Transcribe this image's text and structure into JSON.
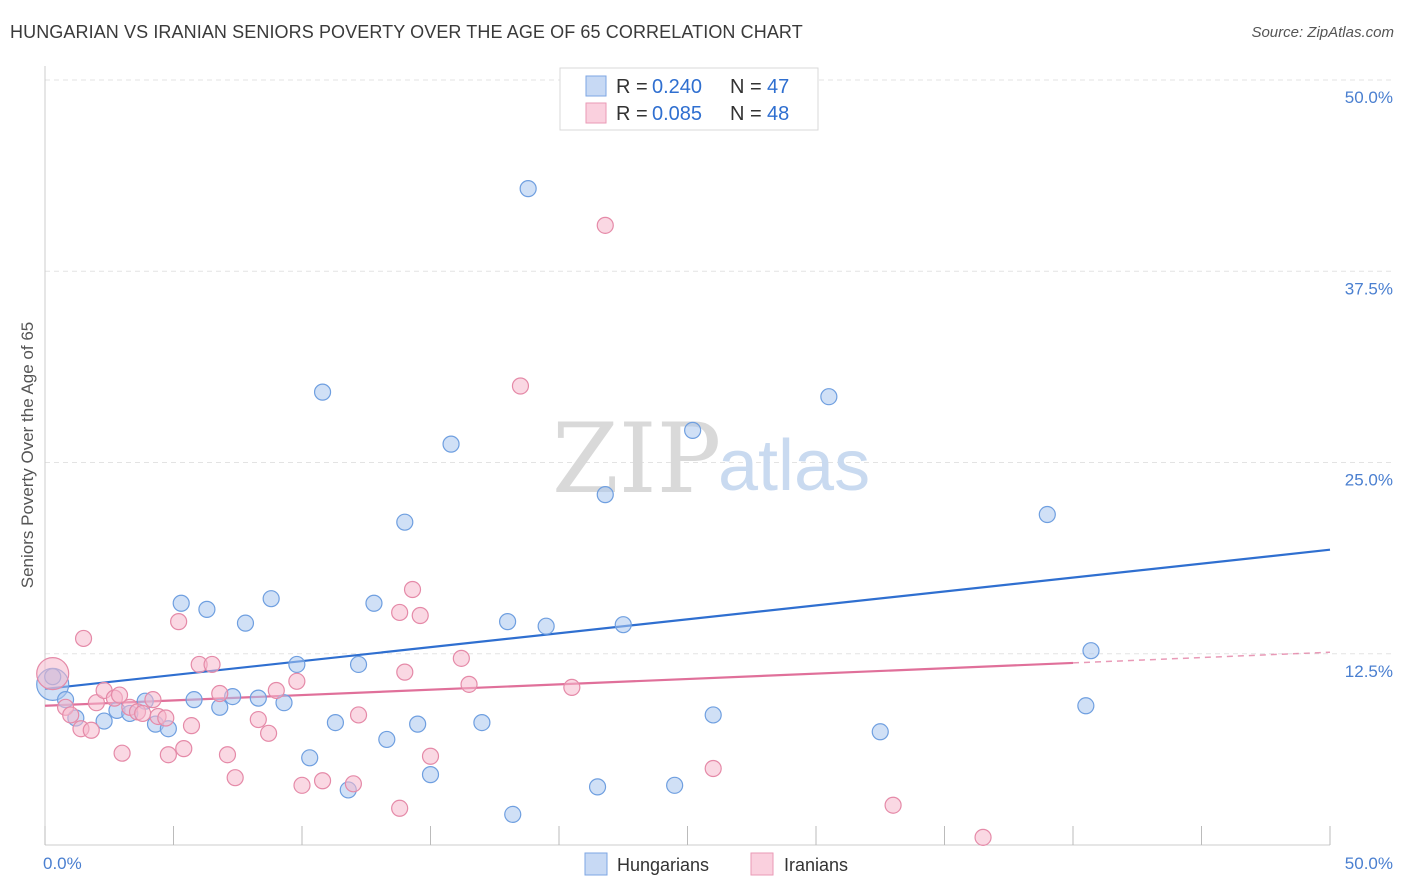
{
  "title": "HUNGARIAN VS IRANIAN SENIORS POVERTY OVER THE AGE OF 65 CORRELATION CHART",
  "source": "Source: ZipAtlas.com",
  "watermark": {
    "zip": "ZIP",
    "atlas": "atlas"
  },
  "chart_data": {
    "type": "scatter",
    "ylabel": "Seniors Poverty Over the Age of 65",
    "xlim": [
      0,
      50
    ],
    "ylim": [
      0,
      50
    ],
    "x_tick_labels": [
      "0.0%",
      "50.0%"
    ],
    "y_tick_labels": [
      "12.5%",
      "25.0%",
      "37.5%",
      "50.0%"
    ],
    "y_ticks": [
      12.5,
      25,
      37.5,
      50
    ],
    "grid": "horizontal dashed",
    "legend_top": [
      {
        "r_label": "R = ",
        "r_value": "0.240",
        "n_label": "N = ",
        "n_value": "47",
        "color": "#a9c6ef"
      },
      {
        "r_label": "R = ",
        "r_value": "0.085",
        "n_label": "N = ",
        "n_value": "48",
        "color": "#f5b8cc"
      }
    ],
    "series": [
      {
        "name": "Hungarians",
        "color": "#a9c6ef",
        "stroke": "#6f9fe0",
        "line_color": "#2f6fd0",
        "trend": {
          "x0": 0,
          "y0": 10.2,
          "x1": 50,
          "y1": 19.3
        },
        "points": [
          [
            0.3,
            10.5
          ],
          [
            0.8,
            9.5
          ],
          [
            1.2,
            8.3
          ],
          [
            2.3,
            8.1
          ],
          [
            2.8,
            8.8
          ],
          [
            3.3,
            8.6
          ],
          [
            3.9,
            9.4
          ],
          [
            4.3,
            7.9
          ],
          [
            4.8,
            7.6
          ],
          [
            5.3,
            15.8
          ],
          [
            5.8,
            9.5
          ],
          [
            6.3,
            15.4
          ],
          [
            6.8,
            9.0
          ],
          [
            7.3,
            9.7
          ],
          [
            7.8,
            14.5
          ],
          [
            8.3,
            9.6
          ],
          [
            8.8,
            16.1
          ],
          [
            9.3,
            9.3
          ],
          [
            9.8,
            11.8
          ],
          [
            10.3,
            5.7
          ],
          [
            10.8,
            29.6
          ],
          [
            11.3,
            8.0
          ],
          [
            11.8,
            3.6
          ],
          [
            12.2,
            11.8
          ],
          [
            12.8,
            15.8
          ],
          [
            13.3,
            6.9
          ],
          [
            14.0,
            21.1
          ],
          [
            14.5,
            7.9
          ],
          [
            15.0,
            4.6
          ],
          [
            15.8,
            26.2
          ],
          [
            17.0,
            8.0
          ],
          [
            18.0,
            14.6
          ],
          [
            18.2,
            2.0
          ],
          [
            18.8,
            42.9
          ],
          [
            19.5,
            14.3
          ],
          [
            21.5,
            3.8
          ],
          [
            21.8,
            22.9
          ],
          [
            22.5,
            14.4
          ],
          [
            24.5,
            3.9
          ],
          [
            25.2,
            27.1
          ],
          [
            26.0,
            8.5
          ],
          [
            30.5,
            29.3
          ],
          [
            32.5,
            7.4
          ],
          [
            39.0,
            21.6
          ],
          [
            40.5,
            9.1
          ],
          [
            40.7,
            12.7
          ],
          [
            0.3,
            11.0
          ]
        ]
      },
      {
        "name": "Iranians",
        "color": "#f5b8cc",
        "stroke": "#e58aa8",
        "line_color": "#e0709a",
        "trend": {
          "x0": 0,
          "y0": 9.1,
          "x1": 40,
          "y1": 11.9
        },
        "trend_dash": {
          "x0": 40,
          "y0": 11.9,
          "x1": 50,
          "y1": 12.6
        },
        "points": [
          [
            0.3,
            11.2
          ],
          [
            0.8,
            9.0
          ],
          [
            1.0,
            8.5
          ],
          [
            1.4,
            7.6
          ],
          [
            1.5,
            13.5
          ],
          [
            1.8,
            7.5
          ],
          [
            2.0,
            9.3
          ],
          [
            2.3,
            10.1
          ],
          [
            2.7,
            9.6
          ],
          [
            2.9,
            9.8
          ],
          [
            3.0,
            6.0
          ],
          [
            3.3,
            9.0
          ],
          [
            3.6,
            8.7
          ],
          [
            3.8,
            8.6
          ],
          [
            4.2,
            9.5
          ],
          [
            4.4,
            8.4
          ],
          [
            4.7,
            8.3
          ],
          [
            4.8,
            5.9
          ],
          [
            5.2,
            14.6
          ],
          [
            5.4,
            6.3
          ],
          [
            5.7,
            7.8
          ],
          [
            6.0,
            11.8
          ],
          [
            6.5,
            11.8
          ],
          [
            6.8,
            9.9
          ],
          [
            7.1,
            5.9
          ],
          [
            7.4,
            4.4
          ],
          [
            8.3,
            8.2
          ],
          [
            8.7,
            7.3
          ],
          [
            9.0,
            10.1
          ],
          [
            9.8,
            10.7
          ],
          [
            10.0,
            3.9
          ],
          [
            10.8,
            4.2
          ],
          [
            12.0,
            4.0
          ],
          [
            12.2,
            8.5
          ],
          [
            13.8,
            2.4
          ],
          [
            13.8,
            15.2
          ],
          [
            14.0,
            11.3
          ],
          [
            14.3,
            16.7
          ],
          [
            14.6,
            15.0
          ],
          [
            15.0,
            5.8
          ],
          [
            16.2,
            12.2
          ],
          [
            16.5,
            10.5
          ],
          [
            18.5,
            30.0
          ],
          [
            20.5,
            10.3
          ],
          [
            21.8,
            40.5
          ],
          [
            26.0,
            5.0
          ],
          [
            33.0,
            2.6
          ],
          [
            36.5,
            0.5
          ]
        ]
      }
    ]
  }
}
